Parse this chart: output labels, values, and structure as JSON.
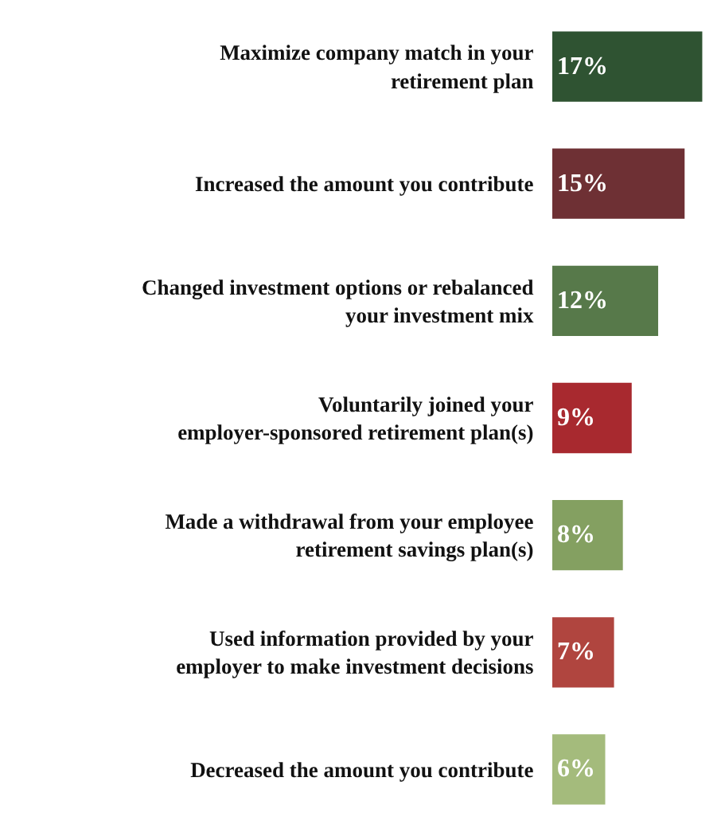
{
  "chart_data": {
    "type": "bar",
    "orientation": "horizontal",
    "categories": [
      "Maximize company match in your retirement plan",
      "Increased the amount you contribute",
      "Changed investment options or rebalanced your investment mix",
      "Voluntarily joined your employer-sponsored retirement plan(s)",
      "Made a withdrawal from your employee retirement savings plan(s)",
      "Used information provided by your employer to make investment decisions",
      "Decreased the amount you contribute"
    ],
    "values": [
      17,
      15,
      12,
      9,
      8,
      7,
      6
    ],
    "colors": [
      "#2f5332",
      "#6e3034",
      "#57794a",
      "#a8292f",
      "#84a061",
      "#b0453f",
      "#a4bb7c"
    ],
    "value_labels": [
      "17%",
      "15%",
      "12%",
      "9%",
      "8%",
      "7%",
      "6%"
    ],
    "legend": false
  }
}
